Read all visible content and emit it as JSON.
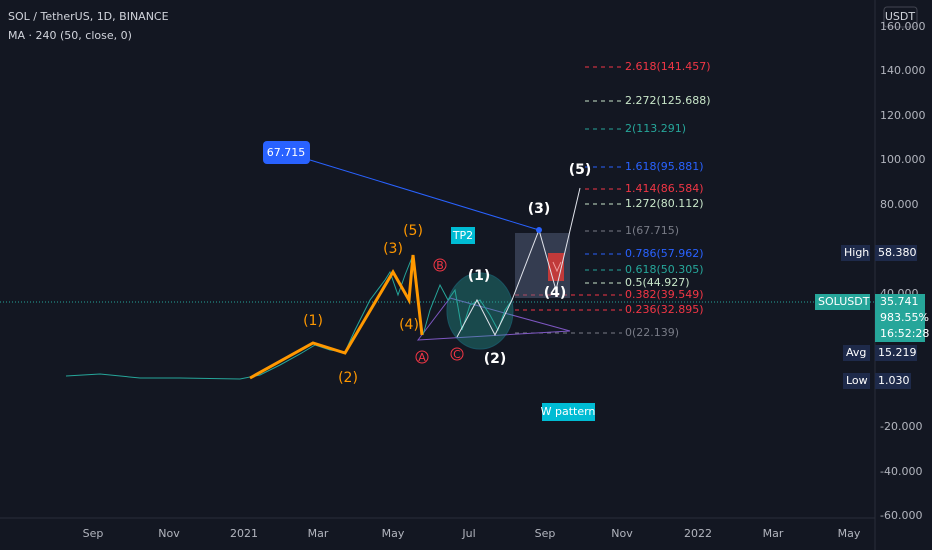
{
  "header": {
    "symbol": "SOL / TetherUS, 1D, BINANCE",
    "indicator": "MA · 240 (50, close, 0)",
    "currency": "USDT"
  },
  "price_axis": [
    "160.000",
    "140.000",
    "120.000",
    "100.000",
    "80.000",
    "40.000",
    "-20.000",
    "-40.000",
    "-60.000"
  ],
  "time_axis": [
    "Sep",
    "Nov",
    "2021",
    "Mar",
    "May",
    "Jul",
    "Sep",
    "Nov",
    "2022",
    "Mar",
    "May"
  ],
  "fib_levels": [
    "2.618(141.457)",
    "2.272(125.688)",
    "2(113.291)",
    "1.618(95.881)",
    "1.414(86.584)",
    "1.272(80.112)",
    "1(67.715)",
    "0.786(57.962)",
    "0.618(50.305)",
    "0.5(44.927)",
    "0.382(39.549)",
    "0.236(32.895)",
    "0(22.139)"
  ],
  "badges": {
    "high_label": "High",
    "high": "58.380",
    "symbol": "SOLUSDT",
    "last": "35.741",
    "change": "983.55%",
    "countdown": "16:52:28",
    "avg_label": "Avg",
    "avg": "15.219",
    "low_label": "Low",
    "low": "1.030"
  },
  "annotations": {
    "target": "67.715",
    "tp2": "TP2",
    "pattern": "W pattern",
    "waves_orange": [
      "(1)",
      "(2)",
      "(3)",
      "(4)",
      "(5)"
    ],
    "waves_white": [
      "(1)",
      "(2)",
      "(3)",
      "(4)",
      "(5)"
    ],
    "abc": [
      "A",
      "B",
      "C"
    ]
  }
}
